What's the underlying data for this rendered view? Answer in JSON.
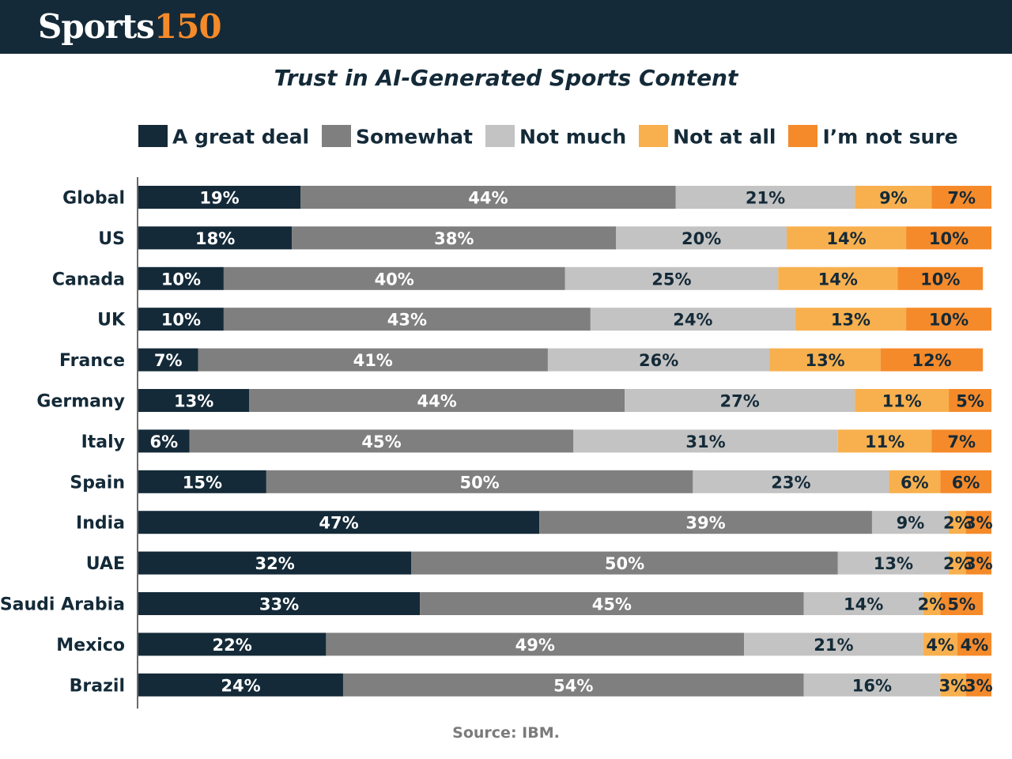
{
  "brand": {
    "word": "Sports",
    "number": "150"
  },
  "title": "Trust in AI-Generated Sports Content",
  "source": "Source: IBM.",
  "colors": {
    "header_bg": "#142a38",
    "logo_accent": "#f58a2a"
  },
  "chart_data": {
    "type": "bar",
    "orientation": "horizontal",
    "stacked": true,
    "title": "Trust in AI-Generated Sports Content",
    "xlabel": "",
    "ylabel": "",
    "xlim": [
      0,
      100
    ],
    "legend_position": "top",
    "grid": false,
    "categories": [
      "Global",
      "US",
      "Canada",
      "UK",
      "France",
      "Germany",
      "Italy",
      "Spain",
      "India",
      "UAE",
      "Saudi Arabia",
      "Mexico",
      "Brazil"
    ],
    "series": [
      {
        "name": "A great deal",
        "color": "#142a38",
        "label_color": "#ffffff",
        "values": [
          19,
          18,
          10,
          10,
          7,
          13,
          6,
          15,
          47,
          32,
          33,
          22,
          24
        ]
      },
      {
        "name": "Somewhat",
        "color": "#7f7f7f",
        "label_color": "#ffffff",
        "values": [
          44,
          38,
          40,
          43,
          41,
          44,
          45,
          50,
          39,
          50,
          45,
          49,
          54
        ]
      },
      {
        "name": "Not much",
        "color": "#c3c3c3",
        "label_color": "#142a38",
        "values": [
          21,
          20,
          25,
          24,
          26,
          27,
          31,
          23,
          9,
          13,
          14,
          21,
          16
        ]
      },
      {
        "name": "Not at all",
        "color": "#f8b04e",
        "label_color": "#142a38",
        "values": [
          9,
          14,
          14,
          13,
          13,
          11,
          11,
          6,
          2,
          2,
          2,
          4,
          3
        ]
      },
      {
        "name": "I’m not sure",
        "color": "#f58a2a",
        "label_color": "#142a38",
        "values": [
          7,
          10,
          10,
          10,
          12,
          5,
          7,
          6,
          3,
          3,
          5,
          4,
          3
        ]
      }
    ]
  }
}
